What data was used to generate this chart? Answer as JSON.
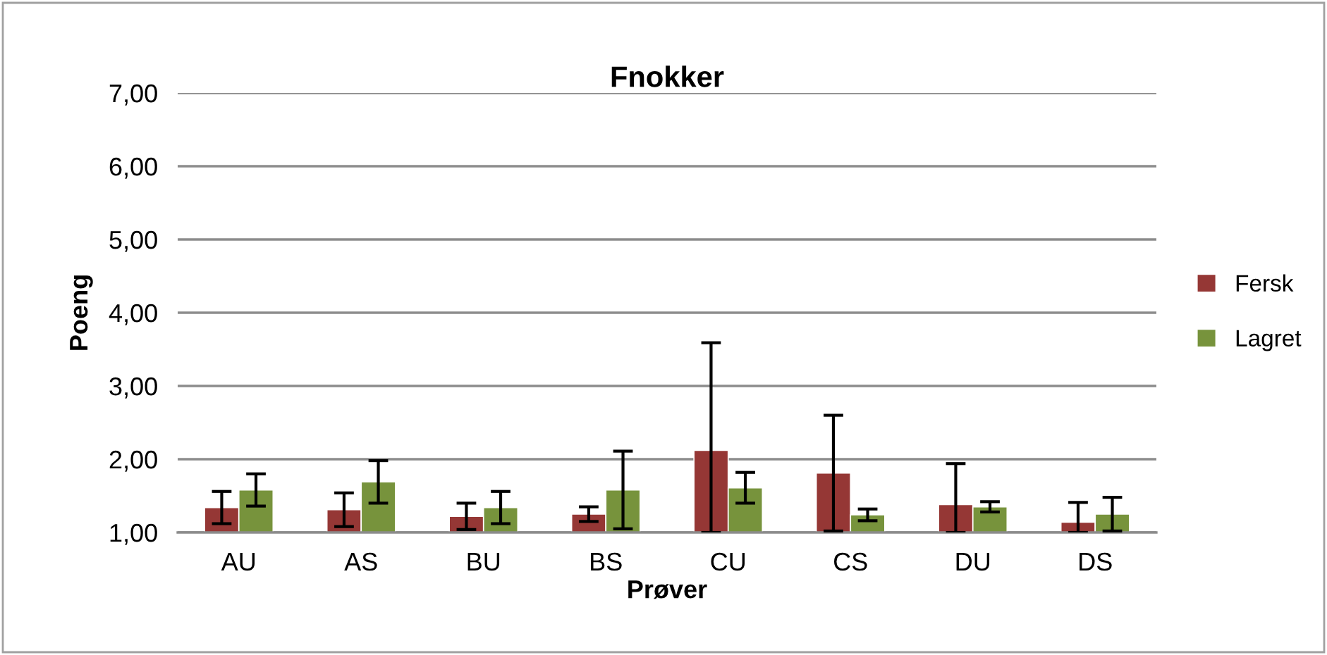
{
  "chart_data": {
    "type": "bar",
    "title": "Fnokker",
    "xlabel": "Prøver",
    "ylabel": "Poeng",
    "categories": [
      "AU",
      "AS",
      "BU",
      "BS",
      "CU",
      "CS",
      "DU",
      "DS"
    ],
    "series": [
      {
        "name": "Fersk",
        "color": "#953735",
        "values": [
          1.34,
          1.31,
          1.22,
          1.25,
          2.12,
          1.81,
          1.38,
          1.14
        ],
        "errors": [
          0.22,
          0.23,
          0.18,
          0.1,
          [
            1.0,
            3.59
          ],
          0.79,
          [
            1.0,
            1.94
          ],
          [
            1.0,
            1.41
          ]
        ]
      },
      {
        "name": "Lagret",
        "color": "#77933c",
        "values": [
          1.58,
          1.69,
          1.34,
          1.58,
          1.61,
          1.24,
          1.35,
          1.25
        ],
        "errors": [
          0.22,
          0.29,
          0.22,
          0.53,
          0.21,
          0.08,
          0.07,
          0.23
        ]
      }
    ],
    "ylim": [
      1.0,
      7.0
    ],
    "yticks": [
      {
        "value": 1,
        "label": "1,00"
      },
      {
        "value": 2,
        "label": "2,00"
      },
      {
        "value": 3,
        "label": "3,00"
      },
      {
        "value": 4,
        "label": "4,00"
      },
      {
        "value": 5,
        "label": "5,00"
      },
      {
        "value": 6,
        "label": "6,00"
      },
      {
        "value": 7,
        "label": "7,00"
      }
    ],
    "grid": "y",
    "legend": "right"
  }
}
